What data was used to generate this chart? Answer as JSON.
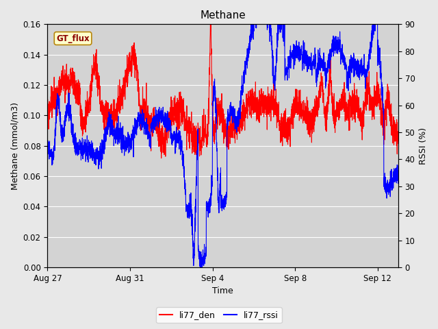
{
  "title": "Methane",
  "xlabel": "Time",
  "ylabel_left": "Methane (mmol/m3)",
  "ylabel_right": "RSSI (%)",
  "legend_label": "GT_flux",
  "series": [
    "li77_den",
    "li77_rssi"
  ],
  "series_colors": [
    "red",
    "blue"
  ],
  "ylim_left": [
    0.0,
    0.16
  ],
  "ylim_right": [
    0,
    90
  ],
  "yticks_left": [
    0.0,
    0.02,
    0.04,
    0.06,
    0.08,
    0.1,
    0.12,
    0.14,
    0.16
  ],
  "yticks_right": [
    0,
    10,
    20,
    30,
    40,
    50,
    60,
    70,
    80,
    90
  ],
  "xtick_labels": [
    "Aug 27",
    "Aug 31",
    "Sep 4",
    "Sep 8",
    "Sep 12"
  ],
  "xtick_positions": [
    0,
    4,
    8,
    12,
    16
  ],
  "xlim": [
    0,
    17
  ],
  "bg_color": "#e8e8e8",
  "plot_bg_color": "#d3d3d3",
  "title_fontsize": 11,
  "axis_fontsize": 9,
  "tick_fontsize": 8.5,
  "legend_fontsize": 9,
  "line_width": 0.8
}
